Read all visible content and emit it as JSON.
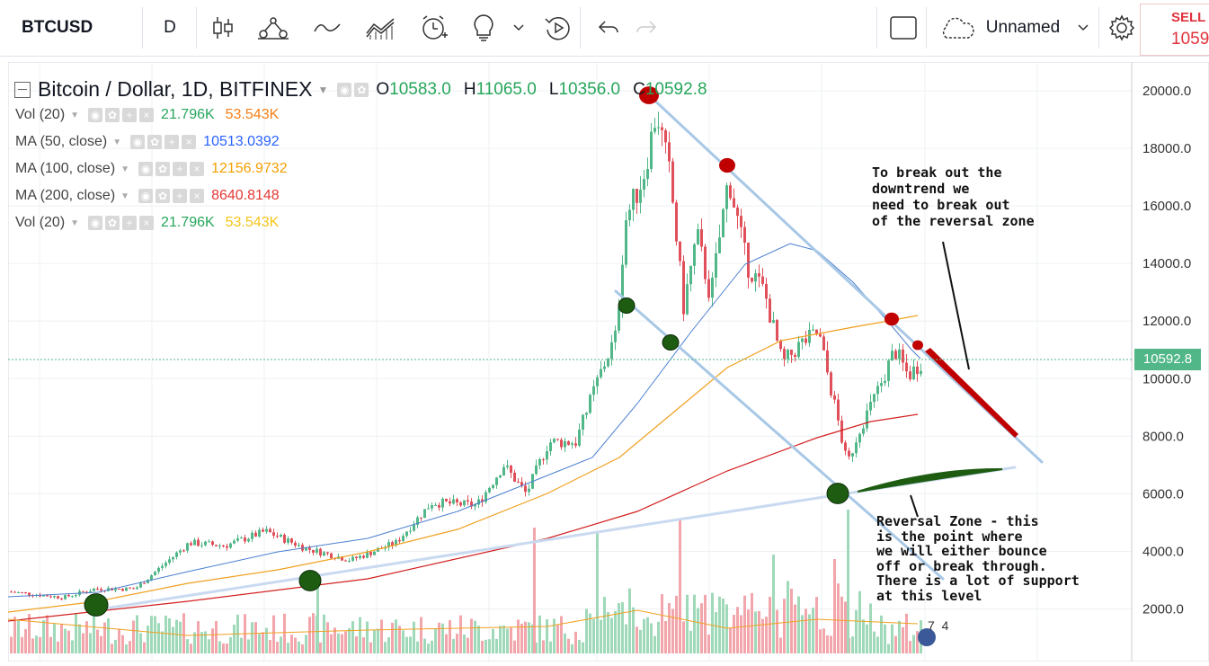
{
  "toolbar": {
    "symbol": "BTCUSD",
    "interval": "D",
    "layout_name": "Unnamed",
    "sell_label": "SELL",
    "sell_price": "1059"
  },
  "legend": {
    "title": "Bitcoin / Dollar, 1D, BITFINEX",
    "ohlc": {
      "o_label": "O",
      "o": "10583.0",
      "h_label": "H",
      "h": "11065.0",
      "l_label": "L",
      "l": "10356.0",
      "c_label": "C",
      "c": "10592.8"
    },
    "indicators": [
      {
        "name": "Vol (20)",
        "values": [
          "21.796K",
          "53.543K"
        ],
        "colors": [
          "#26a65b",
          "#f57f17"
        ]
      },
      {
        "name": "MA (50, close)",
        "values": [
          "10513.0392"
        ],
        "colors": [
          "#2962ff"
        ]
      },
      {
        "name": "MA (100, close)",
        "values": [
          "12156.9732"
        ],
        "colors": [
          "#f59f00"
        ]
      },
      {
        "name": "MA (200, close)",
        "values": [
          "8640.8148"
        ],
        "colors": [
          "#e53935"
        ]
      },
      {
        "name": "Vol (20)",
        "values": [
          "21.796K",
          "53.543K"
        ],
        "colors": [
          "#26a65b",
          "#f5c518"
        ]
      }
    ]
  },
  "price_axis": {
    "labels": [
      "20000.0",
      "18000.0",
      "16000.0",
      "14000.0",
      "12000.0",
      "10000.0",
      "8000.0",
      "6000.0",
      "4000.0",
      "2000.0"
    ],
    "current_price": "10592.8"
  },
  "annotations": {
    "top_note": "To break out the\ndowntrend we\nneed to break out\nof the reversal zone",
    "bottom_note": "Reversal Zone - this\nis the point where\nwe will either bounce\noff or break through.\nThere is a lot of support\nat this level",
    "corner_digits": "7  4"
  },
  "colors": {
    "up": "#52b788",
    "down": "#e0505a",
    "trend_line": "#a8c8e6",
    "ma50": "#4a7fcf",
    "ma100": "#f0a020",
    "ma200": "#d32020"
  }
}
